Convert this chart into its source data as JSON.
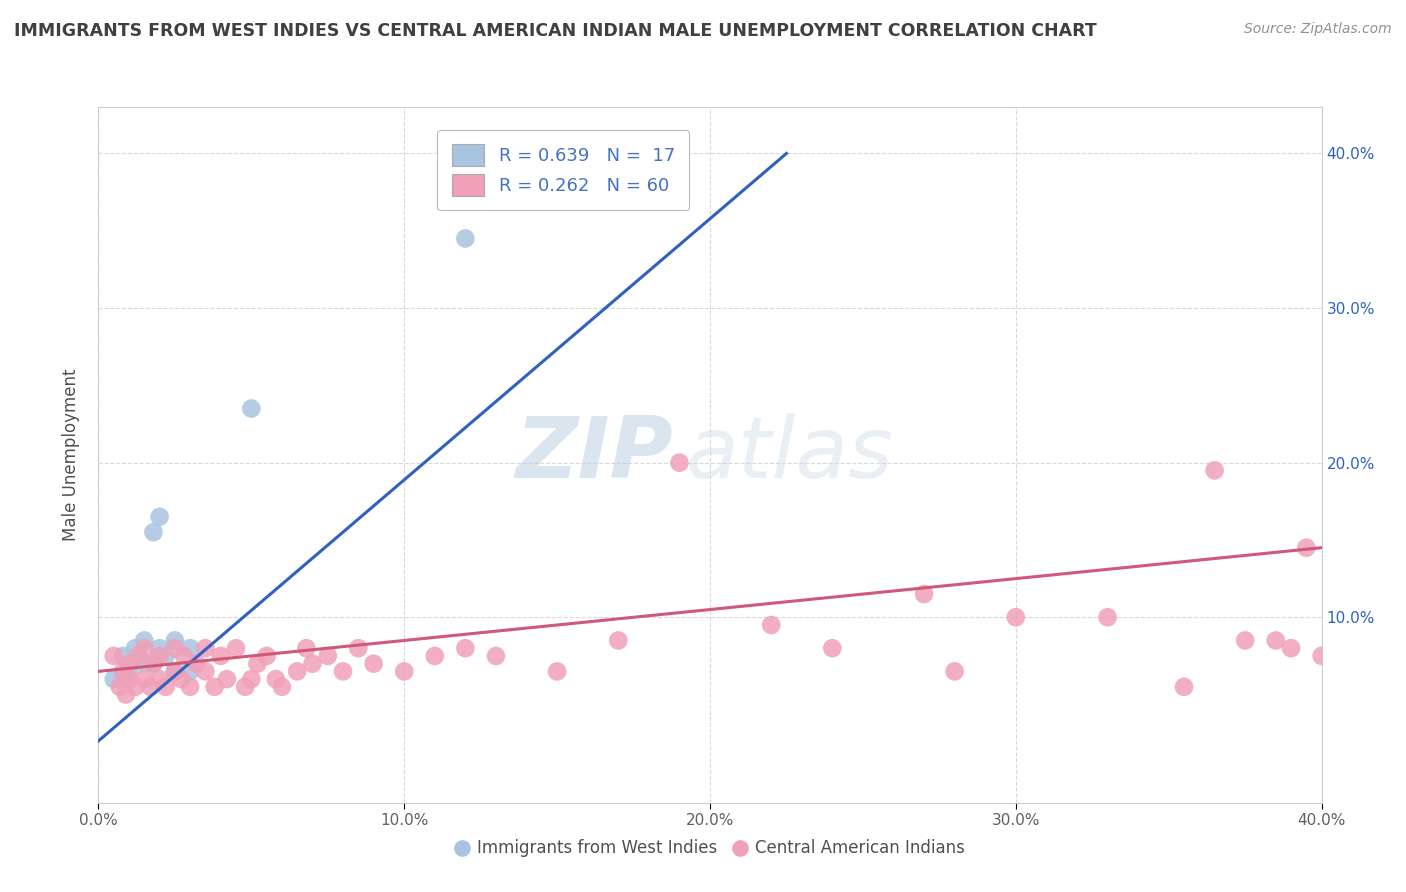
{
  "title": "IMMIGRANTS FROM WEST INDIES VS CENTRAL AMERICAN INDIAN MALE UNEMPLOYMENT CORRELATION CHART",
  "source": "Source: ZipAtlas.com",
  "ylabel": "Male Unemployment",
  "xlim": [
    0.0,
    0.4
  ],
  "ylim": [
    -0.02,
    0.43
  ],
  "xtick_vals": [
    0.0,
    0.1,
    0.2,
    0.3,
    0.4
  ],
  "ytick_vals": [
    0.1,
    0.2,
    0.3,
    0.4
  ],
  "ytick_labels": [
    "10.0%",
    "20.0%",
    "30.0%",
    "40.0%"
  ],
  "right_ytick_vals": [
    0.1,
    0.2,
    0.3,
    0.4
  ],
  "right_ytick_labels": [
    "10.0%",
    "20.0%",
    "30.0%",
    "40.0%"
  ],
  "legend_r1": "R = 0.639",
  "legend_n1": "N =  17",
  "legend_r2": "R = 0.262",
  "legend_n2": "N = 60",
  "blue_color": "#a8c4e0",
  "pink_color": "#f0a0b8",
  "blue_line_color": "#3060c0",
  "pink_line_color": "#d05878",
  "legend_text_color": "#4472c4",
  "title_color": "#404040",
  "source_color": "#909090",
  "background_color": "#ffffff",
  "watermark_zip": "ZIP",
  "watermark_atlas": "atlas",
  "blue_scatter_x": [
    0.005,
    0.008,
    0.01,
    0.012,
    0.015,
    0.015,
    0.018,
    0.018,
    0.02,
    0.02,
    0.022,
    0.025,
    0.025,
    0.03,
    0.03,
    0.05,
    0.12
  ],
  "blue_scatter_y": [
    0.06,
    0.075,
    0.065,
    0.08,
    0.07,
    0.085,
    0.07,
    0.155,
    0.08,
    0.165,
    0.075,
    0.065,
    0.085,
    0.065,
    0.08,
    0.235,
    0.345
  ],
  "pink_scatter_x": [
    0.005,
    0.007,
    0.008,
    0.009,
    0.01,
    0.01,
    0.012,
    0.013,
    0.015,
    0.015,
    0.017,
    0.018,
    0.02,
    0.02,
    0.022,
    0.025,
    0.025,
    0.027,
    0.028,
    0.03,
    0.032,
    0.035,
    0.035,
    0.038,
    0.04,
    0.042,
    0.045,
    0.048,
    0.05,
    0.052,
    0.055,
    0.058,
    0.06,
    0.065,
    0.068,
    0.07,
    0.075,
    0.08,
    0.085,
    0.09,
    0.1,
    0.11,
    0.12,
    0.13,
    0.15,
    0.17,
    0.19,
    0.22,
    0.24,
    0.27,
    0.28,
    0.3,
    0.33,
    0.355,
    0.365,
    0.375,
    0.385,
    0.39,
    0.395,
    0.4
  ],
  "pink_scatter_y": [
    0.075,
    0.055,
    0.065,
    0.05,
    0.06,
    0.07,
    0.055,
    0.075,
    0.06,
    0.08,
    0.055,
    0.07,
    0.06,
    0.075,
    0.055,
    0.065,
    0.08,
    0.06,
    0.075,
    0.055,
    0.07,
    0.065,
    0.08,
    0.055,
    0.075,
    0.06,
    0.08,
    0.055,
    0.06,
    0.07,
    0.075,
    0.06,
    0.055,
    0.065,
    0.08,
    0.07,
    0.075,
    0.065,
    0.08,
    0.07,
    0.065,
    0.075,
    0.08,
    0.075,
    0.065,
    0.085,
    0.2,
    0.095,
    0.08,
    0.115,
    0.065,
    0.1,
    0.1,
    0.055,
    0.195,
    0.085,
    0.085,
    0.08,
    0.145,
    0.075
  ],
  "blue_trendline_x": [
    0.0,
    0.225
  ],
  "blue_trendline_y": [
    0.02,
    0.4
  ],
  "pink_trendline_x": [
    0.0,
    0.4
  ],
  "pink_trendline_y": [
    0.065,
    0.145
  ],
  "grid_color": "#d0d0d0",
  "grid_alpha": 0.8
}
